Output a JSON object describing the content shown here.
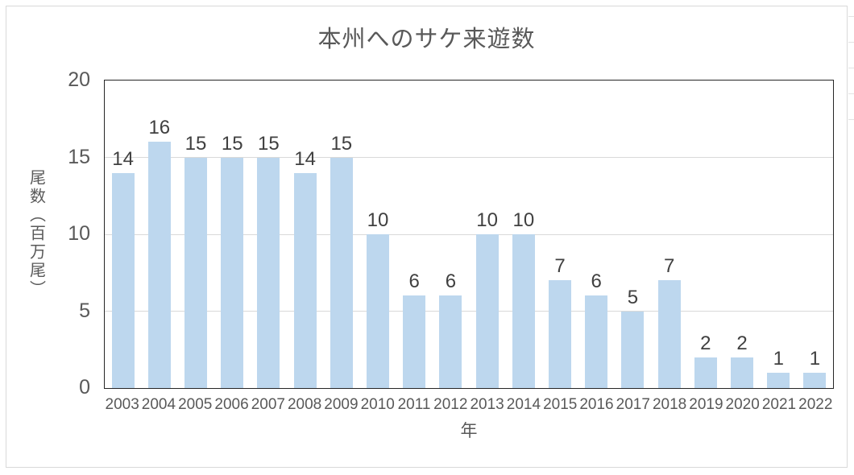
{
  "chart_data": {
    "type": "bar",
    "title": "本州へのサケ来遊数",
    "xlabel": "年",
    "ylabel": "尾数（百万尾）",
    "categories": [
      "2003",
      "2004",
      "2005",
      "2006",
      "2007",
      "2008",
      "2009",
      "2010",
      "2011",
      "2012",
      "2013",
      "2014",
      "2015",
      "2016",
      "2017",
      "2018",
      "2019",
      "2020",
      "2021",
      "2022"
    ],
    "values": [
      14,
      16,
      15,
      15,
      15,
      14,
      15,
      10,
      6,
      6,
      10,
      10,
      7,
      6,
      5,
      7,
      2,
      2,
      1,
      1
    ],
    "ylim": [
      0,
      20
    ],
    "yticks": [
      0,
      5,
      10,
      15,
      20
    ],
    "grid": "horizontal",
    "legend": "none",
    "colors": {
      "bar": "#bdd7ee",
      "gridline": "#d9d9d9",
      "plot_border": "#262626",
      "chart_border": "#d9d9d9",
      "title_text": "#595959",
      "tick_text": "#595959",
      "data_label_text": "#404040",
      "spreadsheet_gridline": "#e3e3e3",
      "background": "#ffffff"
    }
  }
}
